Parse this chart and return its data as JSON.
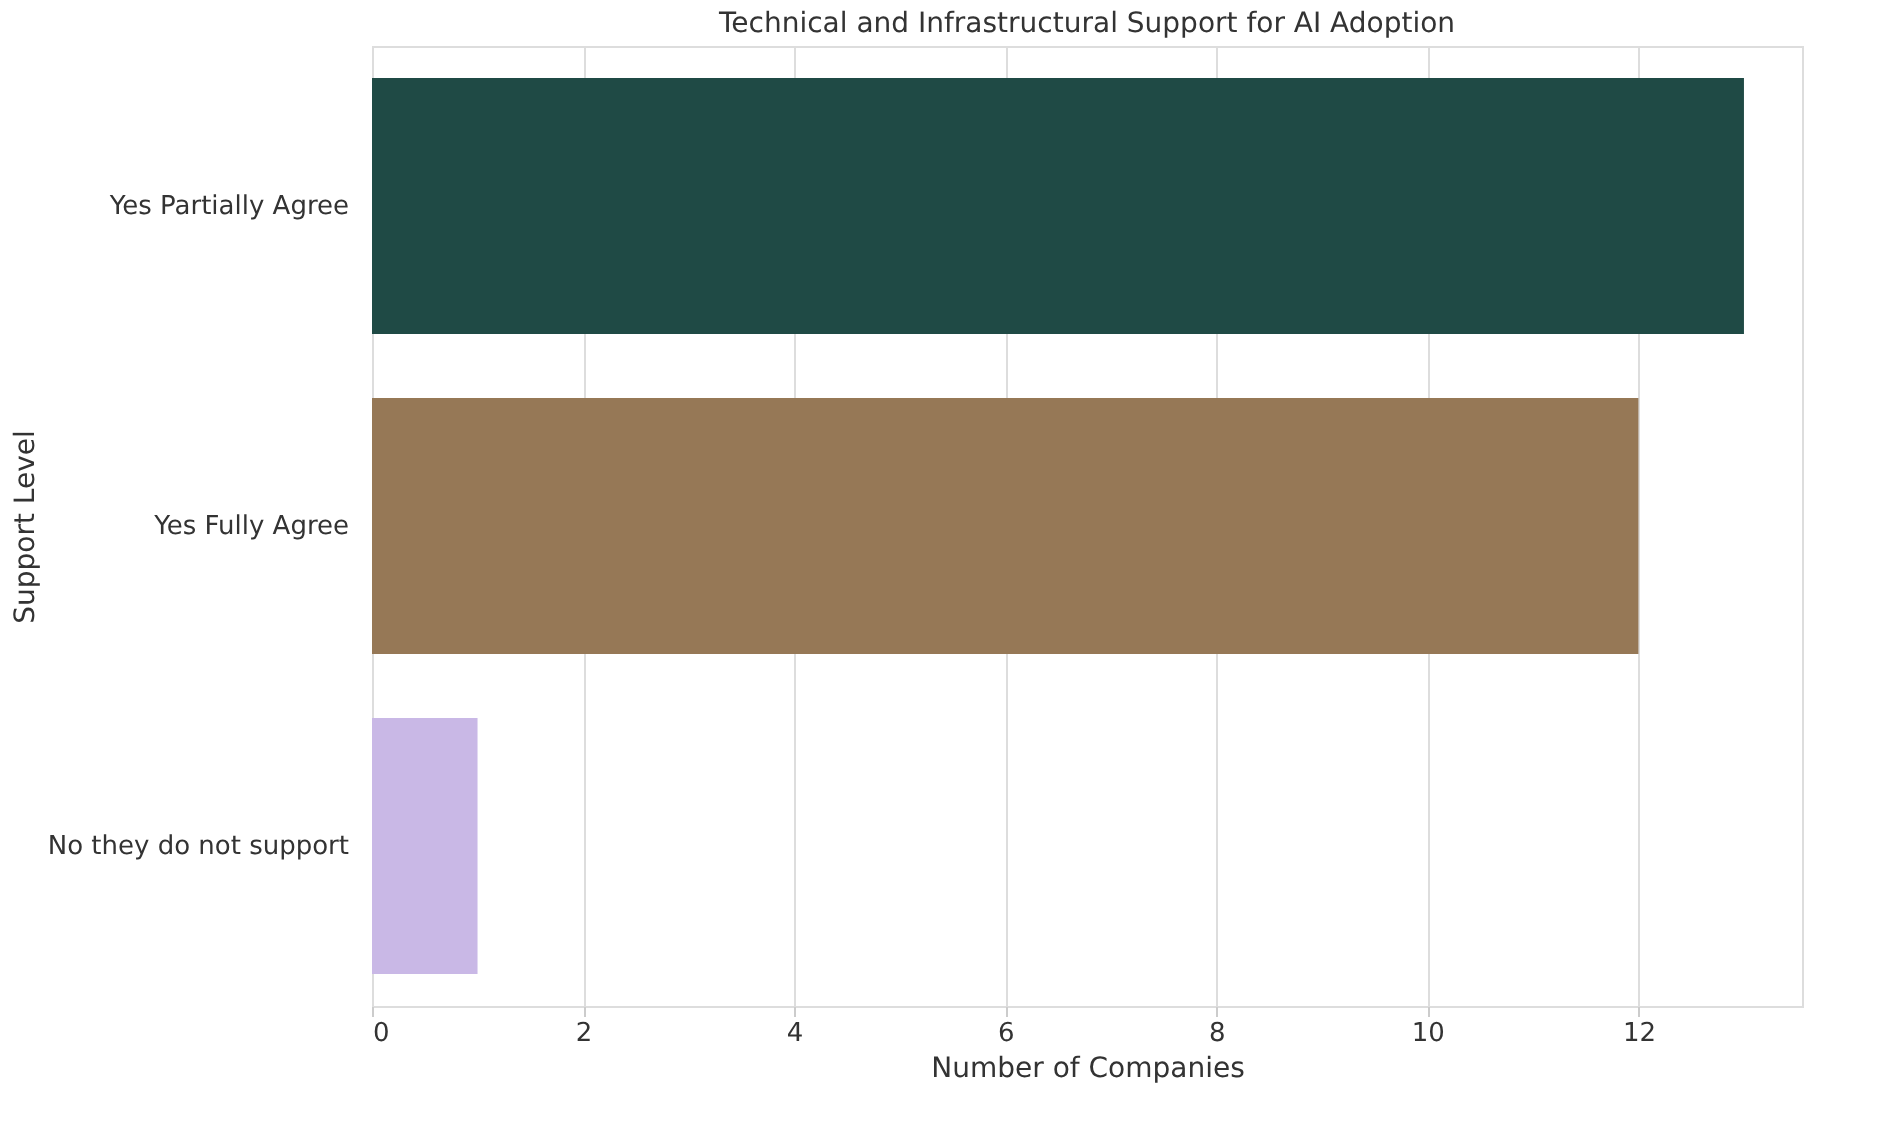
{
  "chart_data": {
    "type": "bar",
    "orientation": "horizontal",
    "title": "Technical and Infrastructural Support for AI Adoption",
    "xlabel": "Number of Companies",
    "ylabel": "Support Level",
    "categories": [
      "Yes Partially Agree",
      "Yes Fully Agree",
      "No they do not support"
    ],
    "values": [
      13,
      12,
      1
    ],
    "colors": [
      "#1f4a45",
      "#967856",
      "#c9b8e6"
    ],
    "xlim": [
      0,
      13.55
    ],
    "xticks": [
      0,
      2,
      4,
      6,
      8,
      10,
      12
    ],
    "grid": "x",
    "legend": false
  }
}
